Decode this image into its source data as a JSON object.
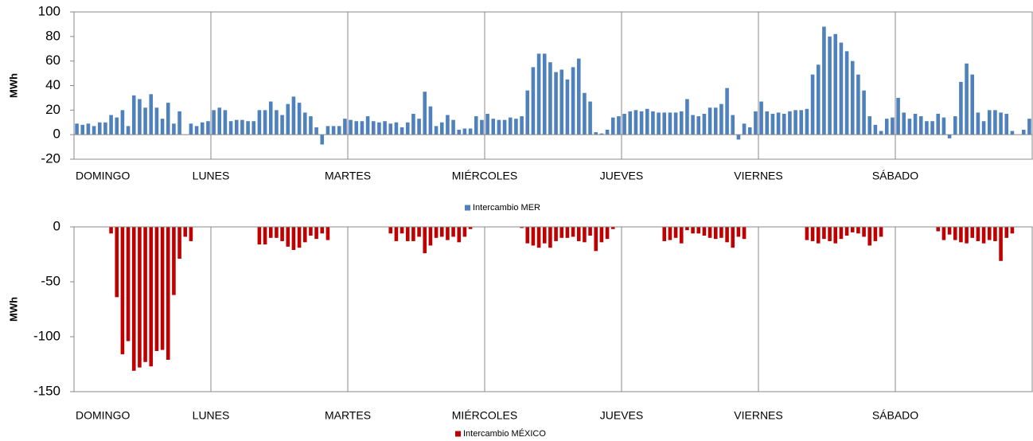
{
  "chart_data": [
    {
      "type": "bar",
      "y_label": "MWh",
      "color": "#4f81bd",
      "ylim": [
        -20,
        100
      ],
      "yticks": [
        -20,
        0,
        20,
        40,
        60,
        80,
        100
      ],
      "grid": "x",
      "categories": [
        "DOMINGO",
        null,
        null,
        null,
        null,
        null,
        null,
        null,
        null,
        null,
        null,
        null,
        null,
        null,
        null,
        null,
        null,
        null,
        null,
        null,
        null,
        null,
        null,
        null,
        "LUNES",
        null,
        null,
        null,
        null,
        null,
        null,
        null,
        null,
        null,
        null,
        null,
        null,
        null,
        null,
        null,
        null,
        null,
        null,
        null,
        null,
        null,
        null,
        null,
        "MARTES",
        null,
        null,
        null,
        null,
        null,
        null,
        null,
        null,
        null,
        null,
        null,
        null,
        null,
        null,
        null,
        null,
        null,
        null,
        null,
        null,
        null,
        null,
        null,
        "MIÉRCOLES",
        null,
        null,
        null,
        null,
        null,
        null,
        null,
        null,
        null,
        null,
        null,
        null,
        null,
        null,
        null,
        null,
        null,
        null,
        null,
        null,
        null,
        null,
        null,
        "JUEVES",
        null,
        null,
        null,
        null,
        null,
        null,
        null,
        null,
        null,
        null,
        null,
        null,
        null,
        null,
        null,
        null,
        null,
        null,
        null,
        null,
        null,
        null,
        null,
        "VIERNES",
        null,
        null,
        null,
        null,
        null,
        null,
        null,
        null,
        null,
        null,
        null,
        null,
        null,
        null,
        null,
        null,
        null,
        null,
        null,
        null,
        null,
        null,
        null,
        "SÁBADO",
        null,
        null,
        null,
        null,
        null,
        null,
        null,
        null,
        null,
        null,
        null,
        null,
        null,
        null,
        null,
        null,
        null,
        null,
        null,
        null,
        null,
        null,
        null
      ],
      "series": [
        {
          "name": "Intercambio MER",
          "color": "#4f81bd",
          "values": [
            9,
            8,
            9,
            7,
            10,
            10,
            16,
            14,
            20,
            7,
            32,
            29,
            22,
            33,
            22,
            13,
            26,
            9,
            19,
            0,
            9,
            7,
            10,
            11,
            20,
            22,
            20,
            11,
            12,
            12,
            11,
            11,
            20,
            20,
            27,
            20,
            16,
            25,
            31,
            26,
            18,
            15,
            6,
            -8,
            7,
            7,
            7,
            13,
            12,
            11,
            11,
            15,
            11,
            10,
            11,
            9,
            10,
            6,
            10,
            17,
            13,
            35,
            23,
            7,
            10,
            16,
            12,
            4,
            5,
            5,
            15,
            12,
            17,
            13,
            12,
            12,
            14,
            13,
            15,
            36,
            55,
            66,
            66,
            59,
            51,
            53,
            45,
            55,
            62,
            34,
            27,
            2,
            1,
            4,
            14,
            15,
            17,
            19,
            20,
            19,
            21,
            19,
            18,
            18,
            18,
            18,
            19,
            29,
            16,
            15,
            17,
            22,
            22,
            25,
            38,
            16,
            -4,
            9,
            6,
            19,
            27,
            19,
            17,
            18,
            17,
            19,
            20,
            20,
            21,
            49,
            57,
            88,
            80,
            82,
            75,
            68,
            60,
            49,
            36,
            15,
            8,
            3,
            13,
            14,
            30,
            18,
            13,
            17,
            15,
            11,
            11,
            17,
            14,
            -3,
            15,
            43,
            58,
            49,
            18,
            11,
            20,
            20,
            18,
            17,
            3,
            0,
            4,
            13
          ]
        }
      ]
    },
    {
      "type": "bar",
      "y_label": "MWh",
      "color": "#c00000",
      "ylim": [
        -150,
        0
      ],
      "yticks": [
        -150,
        -100,
        -50,
        0
      ],
      "grid": "x",
      "categories": [
        "DOMINGO",
        null,
        null,
        null,
        null,
        null,
        null,
        null,
        null,
        null,
        null,
        null,
        null,
        null,
        null,
        null,
        null,
        null,
        null,
        null,
        null,
        null,
        null,
        null,
        "LUNES",
        null,
        null,
        null,
        null,
        null,
        null,
        null,
        null,
        null,
        null,
        null,
        null,
        null,
        null,
        null,
        null,
        null,
        null,
        null,
        null,
        null,
        null,
        null,
        "MARTES",
        null,
        null,
        null,
        null,
        null,
        null,
        null,
        null,
        null,
        null,
        null,
        null,
        null,
        null,
        null,
        null,
        null,
        null,
        null,
        null,
        null,
        null,
        null,
        "MIÉRCOLES",
        null,
        null,
        null,
        null,
        null,
        null,
        null,
        null,
        null,
        null,
        null,
        null,
        null,
        null,
        null,
        null,
        null,
        null,
        null,
        null,
        null,
        null,
        null,
        "JUEVES",
        null,
        null,
        null,
        null,
        null,
        null,
        null,
        null,
        null,
        null,
        null,
        null,
        null,
        null,
        null,
        null,
        null,
        null,
        null,
        null,
        null,
        null,
        null,
        "VIERNES",
        null,
        null,
        null,
        null,
        null,
        null,
        null,
        null,
        null,
        null,
        null,
        null,
        null,
        null,
        null,
        null,
        null,
        null,
        null,
        null,
        null,
        null,
        null,
        "SÁBADO",
        null,
        null,
        null,
        null,
        null,
        null,
        null,
        null,
        null,
        null,
        null,
        null,
        null,
        null,
        null,
        null,
        null,
        null,
        null,
        null,
        null,
        null,
        null
      ],
      "series": [
        {
          "name": "Intercambio MÉXICO",
          "color": "#c00000",
          "values": [
            0,
            0,
            0,
            0,
            0,
            0,
            -6,
            -64,
            -116,
            -104,
            -131,
            -128,
            -123,
            -127,
            -113,
            -112,
            -121,
            -62,
            -29,
            -9,
            -13,
            0,
            0,
            0,
            0,
            0,
            0,
            0,
            0,
            0,
            0,
            0,
            -16,
            -16,
            -10,
            -10,
            -13,
            -18,
            -21,
            -19,
            -14,
            -8,
            -11,
            -6,
            -12,
            0,
            0,
            0,
            0,
            0,
            0,
            0,
            0,
            0,
            0,
            -6,
            -13,
            -6,
            -13,
            -13,
            -9,
            -24,
            -17,
            -10,
            -9,
            -12,
            -9,
            -14,
            -9,
            -2,
            0,
            0,
            0,
            0,
            0,
            0,
            0,
            0,
            -1,
            -15,
            -17,
            -19,
            -15,
            -19,
            -13,
            -10,
            -10,
            -9,
            -13,
            -14,
            -8,
            -22,
            -14,
            -11,
            -2,
            0,
            0,
            0,
            0,
            0,
            0,
            0,
            0,
            -13,
            -12,
            -10,
            -15,
            -3,
            -6,
            -6,
            -8,
            -10,
            -11,
            -10,
            -14,
            -19,
            -9,
            -11,
            0,
            0,
            0,
            0,
            0,
            0,
            0,
            0,
            0,
            0,
            -12,
            -13,
            -15,
            -11,
            -13,
            -15,
            -11,
            -8,
            -5,
            -6,
            -9,
            -17,
            -13,
            -9,
            0,
            0,
            0,
            0,
            0,
            0,
            0,
            0,
            0,
            -4,
            -12,
            -7,
            -12,
            -14,
            -15,
            -10,
            -13,
            -15,
            -12,
            -13,
            -31,
            -10,
            -6,
            0,
            0,
            0
          ]
        }
      ]
    }
  ]
}
